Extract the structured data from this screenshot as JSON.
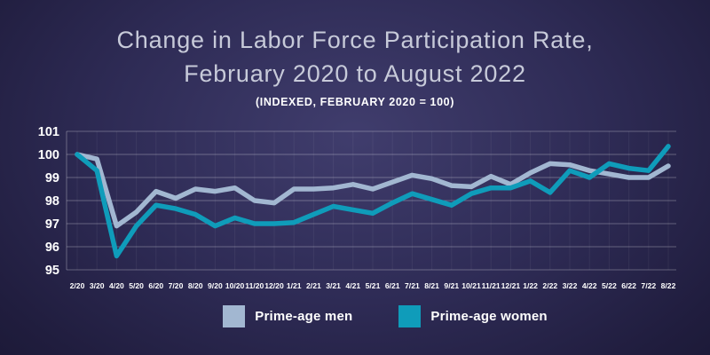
{
  "header": {
    "title_line1": "Change in Labor Force Participation Rate,",
    "title_line2": "February 2020 to August 2022",
    "subtitle": "(INDEXED, FEBRUARY 2020 = 100)"
  },
  "colors": {
    "background_center": "#403d6d",
    "background_edge": "#181631",
    "title_text": "#c7cad9",
    "axis_text": "#ffffff",
    "gridline": "rgba(255,255,255,0.28)",
    "men_line": "#a2b7d1",
    "women_line": "#0f9cba"
  },
  "legend": {
    "items": [
      {
        "label": "Prime-age men",
        "color": "#a2b7d1"
      },
      {
        "label": "Prime-age women",
        "color": "#0f9cba"
      }
    ]
  },
  "chart_data": {
    "type": "line",
    "title": "Change in Labor Force Participation Rate, February 2020 to August 2022",
    "subtitle": "(INDEXED, FEBRUARY 2020 = 100)",
    "xlabel": "",
    "ylabel": "",
    "ylim": [
      95,
      101
    ],
    "yticks": [
      101,
      100,
      99,
      98,
      97,
      96,
      95
    ],
    "grid": true,
    "legend_position": "bottom",
    "x_labels": [
      "2/20",
      "3/20",
      "4/20",
      "5/20",
      "6/20",
      "7/20",
      "8/20",
      "9/20",
      "10/20",
      "11/20",
      "12/20",
      "1/21",
      "2/21",
      "3/21",
      "4/21",
      "5/21",
      "6/21",
      "7/21",
      "8/21",
      "9/21",
      "10/21",
      "11/21",
      "12/21",
      "1/22",
      "2/22",
      "3/22",
      "4/22",
      "5/22",
      "6/22",
      "7/22",
      "8/22"
    ],
    "series": [
      {
        "name": "Prime-age men",
        "color": "#a2b7d1",
        "values": [
          100,
          99.8,
          96.9,
          97.5,
          98.4,
          98.1,
          98.5,
          98.4,
          98.55,
          98.0,
          97.9,
          98.5,
          98.5,
          98.55,
          98.7,
          98.5,
          98.8,
          99.1,
          98.95,
          98.65,
          98.6,
          99.05,
          98.7,
          99.2,
          99.6,
          99.55,
          99.3,
          99.15,
          99.0,
          99.0,
          99.5
        ]
      },
      {
        "name": "Prime-age women",
        "color": "#0f9cba",
        "values": [
          100,
          99.3,
          95.6,
          96.9,
          97.8,
          97.65,
          97.4,
          96.9,
          97.25,
          97.0,
          97.0,
          97.05,
          97.4,
          97.75,
          97.6,
          97.45,
          97.9,
          98.3,
          98.05,
          97.8,
          98.3,
          98.55,
          98.55,
          98.85,
          98.35,
          99.3,
          99.0,
          99.6,
          99.4,
          99.3,
          100.35
        ]
      }
    ]
  }
}
